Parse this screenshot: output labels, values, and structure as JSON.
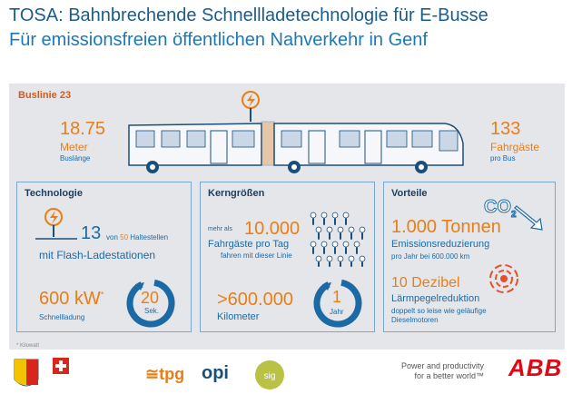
{
  "header": {
    "title": "TOSA: Bahnbrechende Schnellladetechnologie für E-Busse",
    "subtitle": "Für emissionsfreien öffentlichen Nahverkehr in Genf"
  },
  "bus": {
    "line_label": "Buslinie 23",
    "length_value": "18.75",
    "length_unit": "Meter",
    "length_caption": "Buslänge",
    "passengers_value": "133",
    "passengers_unit": "Fahrgäste",
    "passengers_caption": "pro Bus"
  },
  "technologie": {
    "title": "Technologie",
    "stations_count": "13",
    "stations_of": "von",
    "stations_total": "50",
    "stations_suffix": "Haltestellen",
    "stations_label": "mit Flash-Ladestationen",
    "power_value": "600 kW",
    "power_marker": "*",
    "power_label": "Schnellladung",
    "time_value": "20",
    "time_unit": "Sek."
  },
  "kerngroessen": {
    "title": "Kerngrößen",
    "prefix": "mehr als",
    "passengers_day_value": "10.000",
    "passengers_day_label": "Fahrgäste pro Tag",
    "passengers_day_caption": "fahren mit dieser Linie",
    "km_value": ">600.000",
    "km_label": "Kilometer",
    "year_value": "1",
    "year_label": "Jahr"
  },
  "vorteile": {
    "title": "Vorteile",
    "co2_label": "CO",
    "co2_sub": "2",
    "tons_value": "1.000 Tonnen",
    "tons_label": "Emissionsreduzierung",
    "tons_caption": "pro Jahr bei 600.000 km",
    "db_value": "10 Dezibel",
    "db_label": "Lärmpegelreduktion",
    "db_caption_1": "doppelt so leise wie geläufige",
    "db_caption_2": "Dieselmotoren"
  },
  "footnote": "* Kilowatt",
  "footer": {
    "tagline_1": "Power and productivity",
    "tagline_2": "for a better world™",
    "abb": "ABB",
    "tpg": "tpg",
    "opi": "opi",
    "sig": "sig"
  },
  "colors": {
    "orange": "#e97e16",
    "blue": "#1b6aa6",
    "red": "#e30613"
  }
}
